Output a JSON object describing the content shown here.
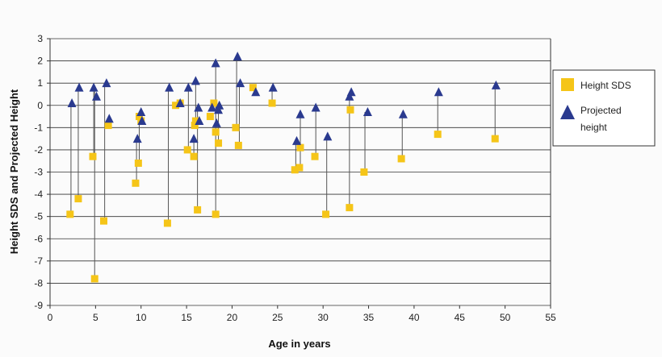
{
  "chart_data": {
    "type": "scatter",
    "title": "",
    "xlabel": "Age in years",
    "ylabel": "Height SDS and Projected Height",
    "xlim": [
      0,
      55
    ],
    "ylim": [
      -9,
      3
    ],
    "xticks": [
      0,
      5,
      10,
      15,
      20,
      25,
      30,
      35,
      40,
      45,
      50,
      55
    ],
    "yticks": [
      3,
      2,
      1,
      0,
      -1,
      -2,
      -3,
      -4,
      -5,
      -6,
      -7,
      -8,
      -9
    ],
    "grid": "horizontal",
    "legend_position": "right",
    "series": [
      {
        "name": "Height SDS",
        "marker": "square",
        "color": "#f5c518",
        "points": [
          [
            2.2,
            -4.9
          ],
          [
            3.1,
            -4.2
          ],
          [
            4.7,
            -2.3
          ],
          [
            4.9,
            -7.8
          ],
          [
            5.9,
            -5.2
          ],
          [
            6.4,
            -0.9
          ],
          [
            9.4,
            -3.5
          ],
          [
            9.7,
            -2.6
          ],
          [
            9.8,
            -0.5
          ],
          [
            10.0,
            -0.7
          ],
          [
            12.9,
            -5.3
          ],
          [
            13.8,
            0.0
          ],
          [
            14.3,
            0.1
          ],
          [
            15.1,
            -2.0
          ],
          [
            15.8,
            -2.3
          ],
          [
            15.9,
            -0.9
          ],
          [
            16.0,
            -0.7
          ],
          [
            16.2,
            -4.7
          ],
          [
            17.6,
            -0.5
          ],
          [
            18.0,
            0.1
          ],
          [
            18.2,
            -4.9
          ],
          [
            18.2,
            -1.2
          ],
          [
            18.5,
            -1.7
          ],
          [
            20.4,
            -1.0
          ],
          [
            20.7,
            -1.8
          ],
          [
            22.3,
            0.8
          ],
          [
            24.4,
            0.1
          ],
          [
            26.9,
            -2.9
          ],
          [
            27.4,
            -2.8
          ],
          [
            27.5,
            -1.9
          ],
          [
            29.1,
            -2.3
          ],
          [
            30.3,
            -4.9
          ],
          [
            32.9,
            -4.6
          ],
          [
            33.0,
            -0.2
          ],
          [
            34.5,
            -3.0
          ],
          [
            38.6,
            -2.4
          ],
          [
            42.6,
            -1.3
          ],
          [
            48.9,
            -1.5
          ]
        ]
      },
      {
        "name": "Projected height",
        "marker": "triangle",
        "color": "#2a3a8f",
        "points": [
          [
            2.4,
            0.1
          ],
          [
            3.2,
            0.8
          ],
          [
            4.8,
            0.8
          ],
          [
            5.1,
            0.4
          ],
          [
            6.2,
            1.0
          ],
          [
            6.5,
            -0.6
          ],
          [
            9.6,
            -1.5
          ],
          [
            10.0,
            -0.3
          ],
          [
            10.1,
            -0.7
          ],
          [
            13.1,
            0.8
          ],
          [
            14.3,
            0.1
          ],
          [
            15.2,
            0.8
          ],
          [
            15.8,
            -1.5
          ],
          [
            16.0,
            1.1
          ],
          [
            16.3,
            -0.1
          ],
          [
            16.4,
            -0.7
          ],
          [
            17.8,
            -0.1
          ],
          [
            18.2,
            1.9
          ],
          [
            18.3,
            -0.8
          ],
          [
            18.5,
            -0.2
          ],
          [
            18.6,
            0.0
          ],
          [
            20.6,
            2.2
          ],
          [
            20.9,
            1.0
          ],
          [
            22.6,
            0.6
          ],
          [
            24.5,
            0.8
          ],
          [
            27.1,
            -1.6
          ],
          [
            27.5,
            -0.4
          ],
          [
            29.2,
            -0.1
          ],
          [
            30.5,
            -1.4
          ],
          [
            32.9,
            0.4
          ],
          [
            33.1,
            0.6
          ],
          [
            34.9,
            -0.3
          ],
          [
            38.8,
            -0.4
          ],
          [
            42.7,
            0.6
          ],
          [
            49.0,
            0.9
          ]
        ]
      }
    ],
    "connectors": [
      [
        2.3,
        -4.9,
        0.1
      ],
      [
        3.1,
        -4.2,
        0.8
      ],
      [
        4.8,
        -2.3,
        0.8
      ],
      [
        4.9,
        -7.8,
        0.8
      ],
      [
        6.0,
        -5.2,
        1.0
      ],
      [
        6.4,
        -0.9,
        -0.6
      ],
      [
        9.5,
        -3.5,
        -1.5
      ],
      [
        9.8,
        -2.6,
        -0.3
      ],
      [
        10.0,
        -0.7,
        -0.3
      ],
      [
        13.0,
        -5.3,
        0.8
      ],
      [
        15.2,
        -2.0,
        0.8
      ],
      [
        15.8,
        -2.3,
        -1.5
      ],
      [
        16.0,
        -0.7,
        1.1
      ],
      [
        16.2,
        -4.7,
        -0.1
      ],
      [
        18.2,
        -4.9,
        1.9
      ],
      [
        18.5,
        -1.7,
        -0.2
      ],
      [
        20.5,
        -1.0,
        2.2
      ],
      [
        20.8,
        -1.8,
        1.0
      ],
      [
        24.4,
        0.1,
        0.8
      ],
      [
        27.0,
        -2.9,
        -1.6
      ],
      [
        27.5,
        -2.8,
        -0.4
      ],
      [
        29.2,
        -2.3,
        -0.1
      ],
      [
        30.4,
        -4.9,
        -1.4
      ],
      [
        32.9,
        -4.6,
        0.4
      ],
      [
        34.6,
        -3.0,
        -0.3
      ],
      [
        38.7,
        -2.4,
        -0.4
      ],
      [
        42.6,
        -1.3,
        0.6
      ],
      [
        48.9,
        -1.5,
        0.9
      ]
    ]
  },
  "legend": {
    "items": [
      {
        "label": "Height SDS",
        "color": "#f5c518",
        "marker": "square"
      },
      {
        "label": "Projected",
        "label2": "height",
        "color": "#2a3a8f",
        "marker": "triangle"
      }
    ]
  }
}
